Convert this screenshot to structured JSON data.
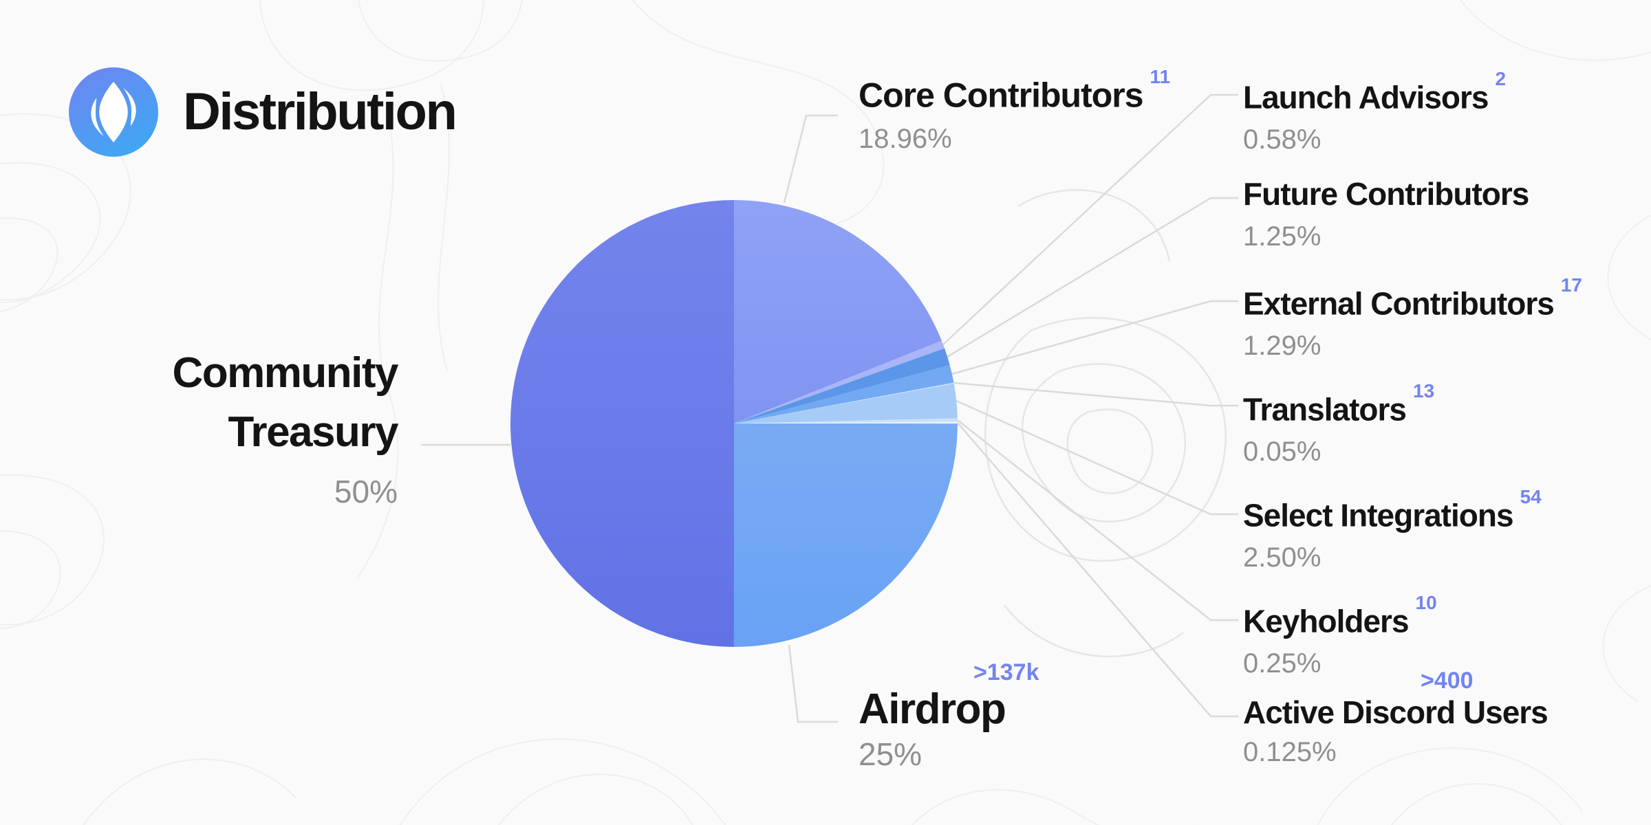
{
  "header": {
    "title": "Distribution",
    "logo": "ens-logo"
  },
  "theme": {
    "background": "#FAFAFA",
    "text_black": "#141414",
    "percent_gray": "#8F8F8F",
    "accent_blue": "#7383F2",
    "leader_line": "#DADADA",
    "logo_gradient": [
      "#7183F0",
      "#41A6F4"
    ]
  },
  "chart_data": {
    "type": "pie",
    "title": "Distribution",
    "direction": "clockwise",
    "start_angle_deg": 0,
    "legend_position": "around",
    "slices": [
      {
        "label": "Core Contributors",
        "count": "11",
        "value_pct": 18.96,
        "pct_text": "18.96%",
        "color": "#8598F3",
        "gradient": [
          "#8FA2F6",
          "#8094F2"
        ]
      },
      {
        "label": "Launch Advisors",
        "count": "2",
        "value_pct": 0.58,
        "pct_text": "0.58%",
        "color": "#A9B5F6"
      },
      {
        "label": "Future Contributors",
        "count": "",
        "value_pct": 1.25,
        "pct_text": "1.25%",
        "color": "#5B96E9"
      },
      {
        "label": "External Contributors",
        "count": "17",
        "value_pct": 1.29,
        "pct_text": "1.29%",
        "color": "#72A9F2"
      },
      {
        "label": "Translators",
        "count": "13",
        "value_pct": 0.05,
        "pct_text": "0.05%",
        "color": "#D5E6FB"
      },
      {
        "label": "Select Integrations",
        "count": "54",
        "value_pct": 2.5,
        "pct_text": "2.50%",
        "color": "#A6CBF7"
      },
      {
        "label": "Keyholders",
        "count": "10",
        "value_pct": 0.25,
        "pct_text": "0.25%",
        "color": "#CCE0FA"
      },
      {
        "label": "Active Discord Users",
        "count": ">400",
        "value_pct": 0.125,
        "pct_text": "0.125%",
        "color": "#EAF3FD"
      },
      {
        "label": "Airdrop",
        "count": ">137k",
        "value_pct": 25,
        "pct_text": "25%",
        "color": "#70A5F4",
        "gradient": [
          "#78ABF3",
          "#69A2F5"
        ]
      },
      {
        "label": "Community Treasury",
        "count": "",
        "value_pct": 50,
        "pct_text": "50%",
        "color": "#6C7CE9",
        "gradient": [
          "#7484EC",
          "#6172E6"
        ]
      }
    ]
  }
}
